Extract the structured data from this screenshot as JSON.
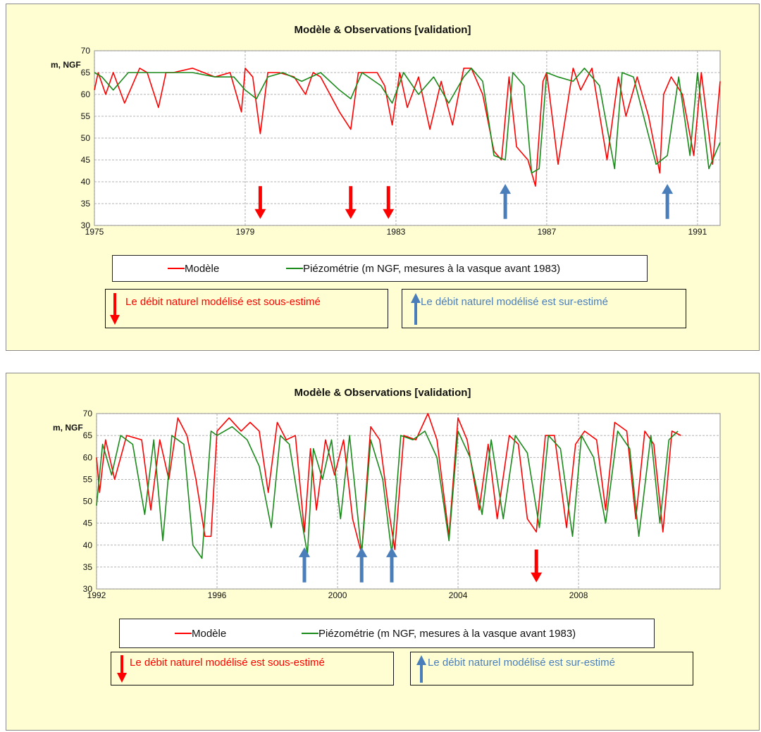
{
  "colors": {
    "model": "#ff0000",
    "obs": "#1a8a1a",
    "down_arrow": "#ff0000",
    "up_arrow": "#4a7ebb",
    "panel_bg": "#fffed2",
    "note_up_text": "#4a7ebb"
  },
  "legend": {
    "model": "Modèle",
    "obs": "Piézométrie (m NGF, mesures à la vasque avant 1983)"
  },
  "notes": {
    "down": "Le débit naturel modélisé est sous-estimé",
    "up": "Le débit naturel modélisé est sur-estimé"
  },
  "chart_data": [
    {
      "type": "line",
      "title": "Modèle & Observations [validation]",
      "ylabel": "m,  NGF",
      "xlim": [
        1975,
        1991.6
      ],
      "ylim": [
        30,
        70
      ],
      "xticks": [
        "1975",
        "1979",
        "1983",
        "1987",
        "1991"
      ],
      "xtick_values": [
        1975,
        1979,
        1983,
        1987,
        1991
      ],
      "yticks": [
        "30",
        "35",
        "40",
        "45",
        "50",
        "55",
        "60",
        "65",
        "70"
      ],
      "grid": true,
      "legend_position": "bottom",
      "down_arrows_at": [
        1979.4,
        1981.8,
        1982.8
      ],
      "up_arrows_at": [
        1985.9,
        1990.2
      ],
      "series": [
        {
          "name": "Modèle",
          "x": [
            1975,
            1975.1,
            1975.3,
            1975.5,
            1975.8,
            1976.2,
            1976.4,
            1976.7,
            1976.9,
            1977.1,
            1977.6,
            1978.2,
            1978.6,
            1978.9,
            1979.0,
            1979.2,
            1979.4,
            1979.6,
            1979.9,
            1980.3,
            1980.6,
            1980.8,
            1981.0,
            1981.5,
            1981.8,
            1982.0,
            1982.5,
            1982.7,
            1982.9,
            1983.1,
            1983.3,
            1983.6,
            1983.9,
            1984.2,
            1984.5,
            1984.8,
            1985.0,
            1985.3,
            1985.6,
            1985.8,
            1986.0,
            1986.2,
            1986.5,
            1986.7,
            1986.9,
            1987.0,
            1987.3,
            1987.7,
            1987.9,
            1988.2,
            1988.6,
            1988.9,
            1989.1,
            1989.4,
            1989.7,
            1990.0,
            1990.1,
            1990.3,
            1990.6,
            1990.9,
            1991.1,
            1991.4,
            1991.6
          ],
          "y": [
            61,
            65,
            60,
            65,
            58,
            66,
            65,
            57,
            65,
            65,
            66,
            64,
            65,
            56,
            66,
            64,
            51,
            65,
            65,
            64,
            60,
            65,
            64,
            56,
            52,
            65,
            65,
            62,
            53,
            65,
            57,
            64,
            52,
            63,
            53,
            66,
            66,
            60,
            47,
            45,
            64,
            48,
            45,
            39,
            63,
            65,
            44,
            66,
            61,
            66,
            45,
            64,
            55,
            64,
            55,
            42,
            60,
            64,
            60,
            46,
            65,
            44,
            63
          ]
        },
        {
          "name": "Piézométrie (m NGF, mesures à la vasque avant 1983)",
          "x": [
            1975,
            1975.2,
            1975.5,
            1975.9,
            1976.5,
            1977.0,
            1977.6,
            1978.2,
            1978.7,
            1979.0,
            1979.3,
            1979.6,
            1980.0,
            1980.5,
            1981.0,
            1981.5,
            1981.8,
            1982.1,
            1982.6,
            1982.9,
            1983.2,
            1983.6,
            1984.0,
            1984.4,
            1984.8,
            1985.0,
            1985.3,
            1985.6,
            1985.9,
            1986.1,
            1986.4,
            1986.6,
            1986.8,
            1987.0,
            1987.3,
            1987.7,
            1988.0,
            1988.4,
            1988.8,
            1989.0,
            1989.3,
            1989.6,
            1989.9,
            1990.2,
            1990.5,
            1990.8,
            1991.0,
            1991.3,
            1991.6
          ],
          "y": [
            65,
            64,
            61,
            65,
            65,
            65,
            65,
            64,
            64,
            61,
            59,
            64,
            65,
            63,
            65,
            61,
            59,
            65,
            62,
            58,
            65,
            60,
            64,
            58,
            64,
            66,
            63,
            46,
            45,
            65,
            62,
            42,
            43,
            65,
            64,
            63,
            66,
            62,
            43,
            65,
            64,
            54,
            44,
            46,
            64,
            46,
            65,
            43,
            49
          ]
        }
      ]
    },
    {
      "type": "line",
      "title": "Modèle & Observations [validation]",
      "ylabel": "m,  NGF",
      "xlim": [
        1992,
        2012.7
      ],
      "ylim": [
        30,
        70
      ],
      "xticks": [
        "1992",
        "1996",
        "2000",
        "2004",
        "2008"
      ],
      "xtick_values": [
        1992,
        1996,
        2000,
        2004,
        2008
      ],
      "yticks": [
        "30",
        "35",
        "40",
        "45",
        "50",
        "55",
        "60",
        "65",
        "70"
      ],
      "grid": true,
      "legend_position": "bottom",
      "down_arrows_at": [
        2006.6
      ],
      "up_arrows_at": [
        1998.9,
        2000.8,
        2001.8
      ],
      "series": [
        {
          "name": "Modèle",
          "x": [
            1992,
            1992.1,
            1992.3,
            1992.6,
            1993.0,
            1993.5,
            1993.8,
            1994.1,
            1994.4,
            1994.7,
            1995.0,
            1995.3,
            1995.6,
            1995.8,
            1996.0,
            1996.4,
            1996.8,
            1997.1,
            1997.4,
            1997.7,
            1998.0,
            1998.3,
            1998.6,
            1998.9,
            1999.1,
            1999.3,
            1999.6,
            1999.9,
            2000.2,
            2000.5,
            2000.8,
            2001.1,
            2001.4,
            2001.7,
            2001.9,
            2002.2,
            2002.6,
            2003.0,
            2003.3,
            2003.7,
            2004.0,
            2004.3,
            2004.7,
            2005.0,
            2005.3,
            2005.7,
            2006.0,
            2006.3,
            2006.6,
            2006.9,
            2007.2,
            2007.6,
            2007.9,
            2008.2,
            2008.6,
            2008.9,
            2009.2,
            2009.6,
            2009.9,
            2010.2,
            2010.5,
            2010.8,
            2011.1,
            2011.4
          ],
          "y": [
            60,
            52,
            64,
            55,
            65,
            64,
            48,
            64,
            55,
            69,
            65,
            55,
            42,
            42,
            66,
            69,
            66,
            68,
            66,
            52,
            68,
            64,
            65,
            43,
            62,
            48,
            64,
            56,
            64,
            46,
            38,
            67,
            64,
            48,
            39,
            65,
            64,
            70,
            64,
            42,
            69,
            64,
            48,
            63,
            46,
            65,
            63,
            46,
            43,
            65,
            65,
            44,
            63,
            66,
            64,
            48,
            68,
            66,
            46,
            66,
            63,
            43,
            66,
            65
          ]
        },
        {
          "name": "Piézométrie (m NGF, mesures à la vasque avant 1983)",
          "x": [
            1992,
            1992.2,
            1992.5,
            1992.8,
            1993.2,
            1993.6,
            1993.9,
            1994.2,
            1994.5,
            1994.9,
            1995.2,
            1995.5,
            1995.8,
            1996.0,
            1996.5,
            1997.0,
            1997.4,
            1997.8,
            1998.1,
            1998.4,
            1998.7,
            1999.0,
            1999.2,
            1999.5,
            1999.8,
            2000.1,
            2000.4,
            2000.8,
            2001.1,
            2001.5,
            2001.8,
            2002.1,
            2002.5,
            2002.9,
            2003.3,
            2003.7,
            2004.0,
            2004.4,
            2004.8,
            2005.1,
            2005.5,
            2005.9,
            2006.3,
            2006.7,
            2007.0,
            2007.4,
            2007.8,
            2008.1,
            2008.5,
            2008.9,
            2009.3,
            2009.7,
            2010.0,
            2010.4,
            2010.7,
            2011.0,
            2011.3
          ],
          "y": [
            49,
            63,
            56,
            65,
            63,
            47,
            64,
            41,
            65,
            63,
            40,
            37,
            66,
            65,
            67,
            64,
            58,
            44,
            65,
            63,
            50,
            38,
            62,
            55,
            64,
            46,
            65,
            38,
            64,
            55,
            38,
            65,
            64,
            66,
            60,
            41,
            66,
            60,
            47,
            64,
            46,
            65,
            61,
            44,
            65,
            62,
            42,
            65,
            60,
            45,
            66,
            62,
            42,
            65,
            45,
            64,
            66
          ]
        }
      ]
    }
  ]
}
